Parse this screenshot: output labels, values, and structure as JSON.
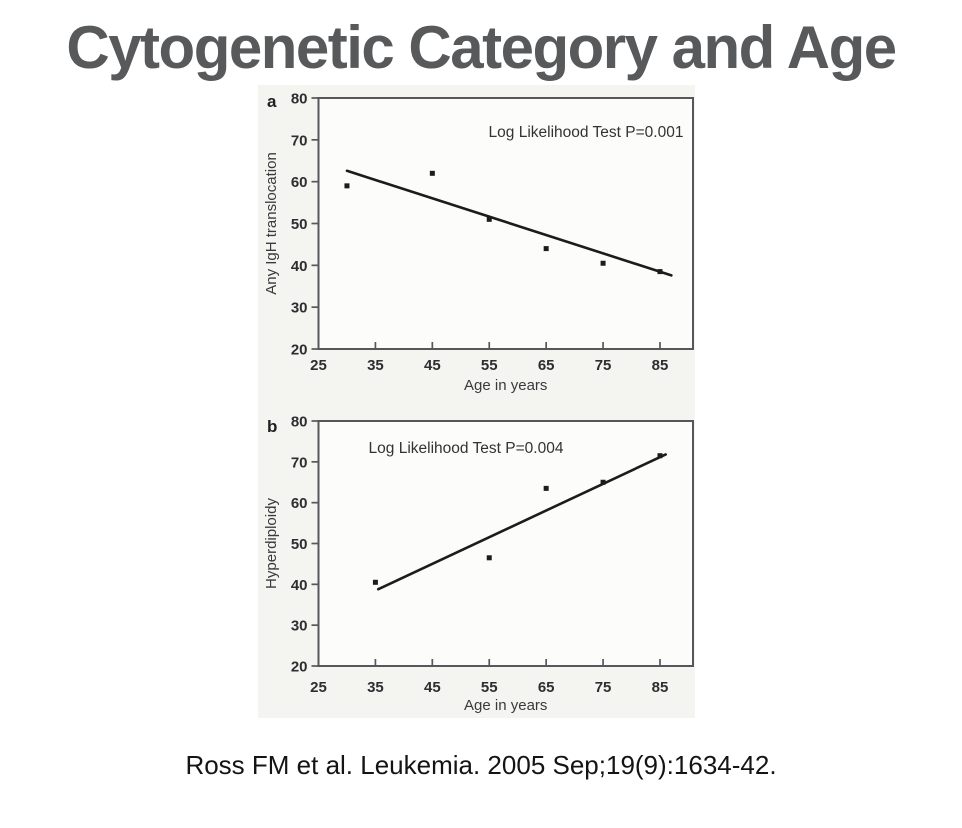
{
  "page": {
    "title": "Cytogenetic Category and Age",
    "citation": "Ross FM et al. Leukemia. 2005 Sep;19(9):1634-42."
  },
  "colors": {
    "title_text": "#58595b",
    "citation_text": "#141414",
    "figure_background": "#f4f4f1",
    "plot_background": "#fcfcfa",
    "axis": "#56575b",
    "ink": "#1c1c1c"
  },
  "chart_data": [
    {
      "type": "scatter",
      "panel": "a",
      "title": "",
      "xlabel": "Age in years",
      "ylabel": "Any IgH translocation",
      "annotation": "Log Likelihood Test P=0.001",
      "x": [
        30,
        45,
        55,
        65,
        75,
        85
      ],
      "y": [
        59,
        62,
        51,
        44,
        40.5,
        38.5
      ],
      "trendline": {
        "x1": 30,
        "y1": 62.6,
        "x2": 87,
        "y2": 37.6
      },
      "xticks": [
        25,
        35,
        45,
        55,
        65,
        75,
        85
      ],
      "yticks": [
        20,
        30,
        40,
        50,
        60,
        70,
        80
      ],
      "xlim": [
        25,
        90.8
      ],
      "ylim": [
        20,
        80
      ],
      "grid": false,
      "marker": "square",
      "legend_position": "none"
    },
    {
      "type": "scatter",
      "panel": "b",
      "title": "",
      "xlabel": "Age in years",
      "ylabel": "Hyperdiploidy",
      "annotation": "Log Likelihood Test P=0.004",
      "x": [
        35,
        55,
        65,
        75,
        85
      ],
      "y": [
        40.5,
        46.5,
        63.5,
        65,
        71.5
      ],
      "trendline": {
        "x1": 35.5,
        "y1": 38.8,
        "x2": 86,
        "y2": 71.8
      },
      "xticks": [
        25,
        35,
        45,
        55,
        65,
        75,
        85
      ],
      "yticks": [
        20,
        30,
        40,
        50,
        60,
        70,
        80
      ],
      "xlim": [
        25,
        90.8
      ],
      "ylim": [
        20,
        80
      ],
      "grid": false,
      "marker": "square",
      "legend_position": "none"
    }
  ]
}
